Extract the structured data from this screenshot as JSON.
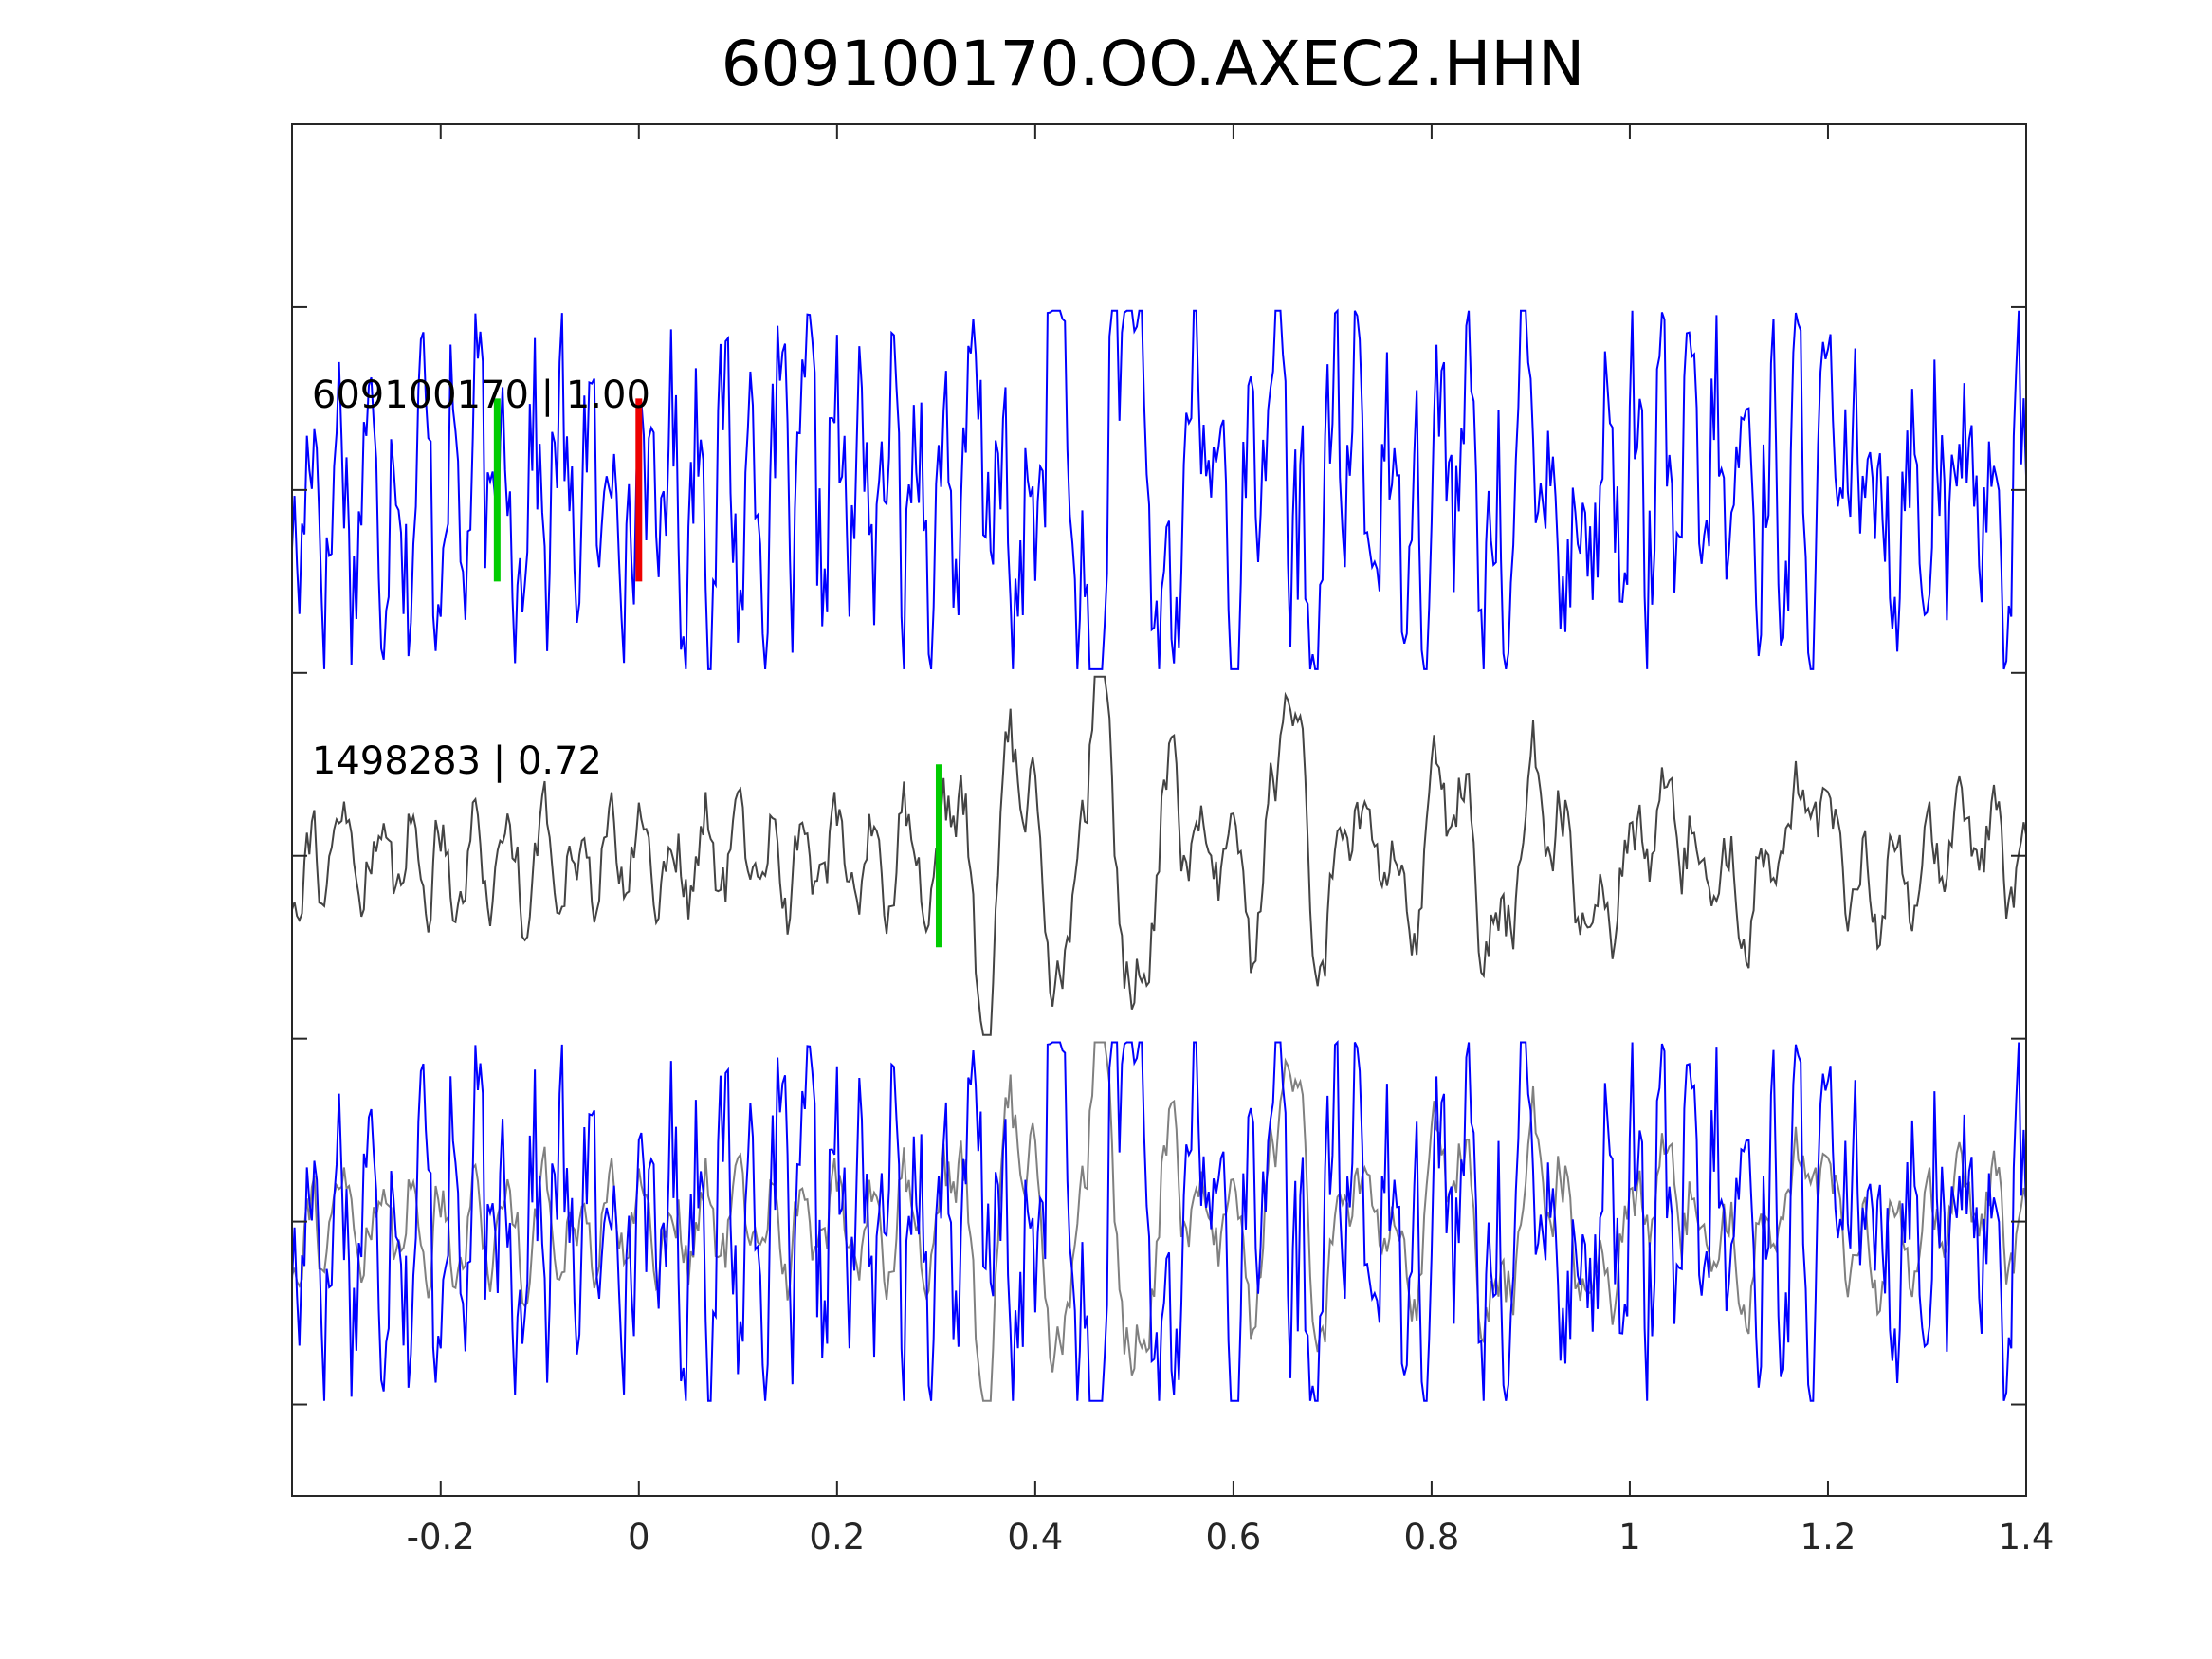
{
  "chart_data": {
    "type": "line",
    "title": "609100170.OO.AXEC2.HHN",
    "xlabel": "",
    "ylabel": "",
    "xlim": [
      -0.35,
      1.4
    ],
    "ylim": [
      -5.5,
      2.0
    ],
    "grid": false,
    "x_ticks": [
      -0.2,
      0,
      0.2,
      0.4,
      0.6,
      0.8,
      1.0,
      1.2,
      1.4
    ],
    "x_tick_labels": [
      "-0.2",
      "0",
      "0.2",
      "0.4",
      "0.6",
      "0.8",
      "1",
      "1.2",
      "1.4"
    ],
    "y_ticks": [
      -5,
      -4,
      -3,
      -2,
      -1,
      0,
      1
    ],
    "colors": {
      "primary": "#0000ff",
      "reference": "#444444",
      "overlay_reference": "#808080",
      "pick_green": "#00cc00",
      "pick_red": "#ee0000"
    },
    "traces": [
      {
        "label": "609100170 | 1.00",
        "offset": 0,
        "color": "#0000ff",
        "label_pos": [
          -0.33,
          0.45
        ]
      },
      {
        "label": "1498283 | 0.72",
        "offset": -2,
        "color": "#444444",
        "label_pos": [
          -0.33,
          -1.55
        ]
      }
    ],
    "picks": [
      {
        "x": -0.143,
        "y0": -0.5,
        "y1": 0.5,
        "color": "#00cc00"
      },
      {
        "x": 0.0,
        "y0": -0.5,
        "y1": 0.5,
        "color": "#ee0000"
      },
      {
        "x": 0.303,
        "y0": -2.5,
        "y1": -1.5,
        "color": "#00cc00"
      }
    ],
    "overlay_offset": -4
  }
}
